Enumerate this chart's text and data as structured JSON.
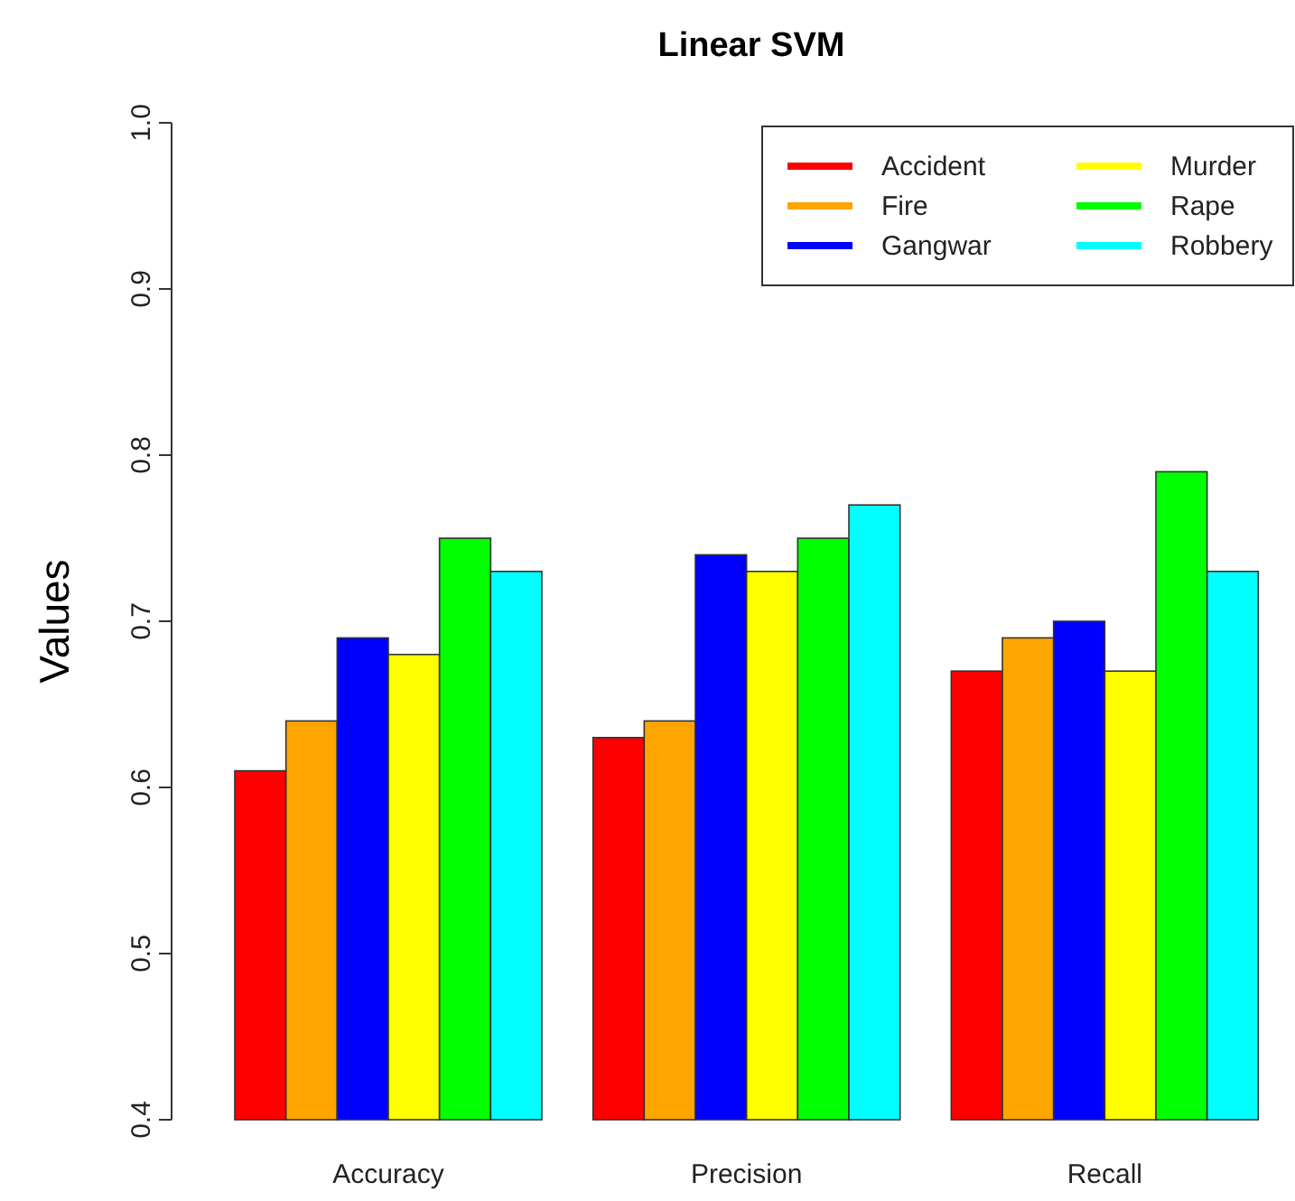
{
  "chart_data": {
    "type": "bar",
    "title": "Linear SVM",
    "ylabel": "Values",
    "categories": [
      "Accuracy",
      "Precision",
      "Recall"
    ],
    "series": [
      {
        "name": "Accident",
        "color": "#ff0000",
        "values": [
          0.61,
          0.63,
          0.67
        ]
      },
      {
        "name": "Fire",
        "color": "#ffa500",
        "values": [
          0.64,
          0.64,
          0.69
        ]
      },
      {
        "name": "Gangwar",
        "color": "#0000ff",
        "values": [
          0.69,
          0.74,
          0.7
        ]
      },
      {
        "name": "Murder",
        "color": "#ffff00",
        "values": [
          0.68,
          0.73,
          0.67
        ]
      },
      {
        "name": "Rape",
        "color": "#00ff00",
        "values": [
          0.75,
          0.75,
          0.79
        ]
      },
      {
        "name": "Robbery",
        "color": "#00ffff",
        "values": [
          0.73,
          0.77,
          0.73
        ]
      }
    ],
    "ylim": [
      0.4,
      1.0
    ],
    "yticks": [
      0.4,
      0.5,
      0.6,
      0.7,
      0.8,
      0.9,
      {
        "value": 1,
        "label": "1.0"
      }
    ],
    "legend": "top right",
    "grid": false
  }
}
